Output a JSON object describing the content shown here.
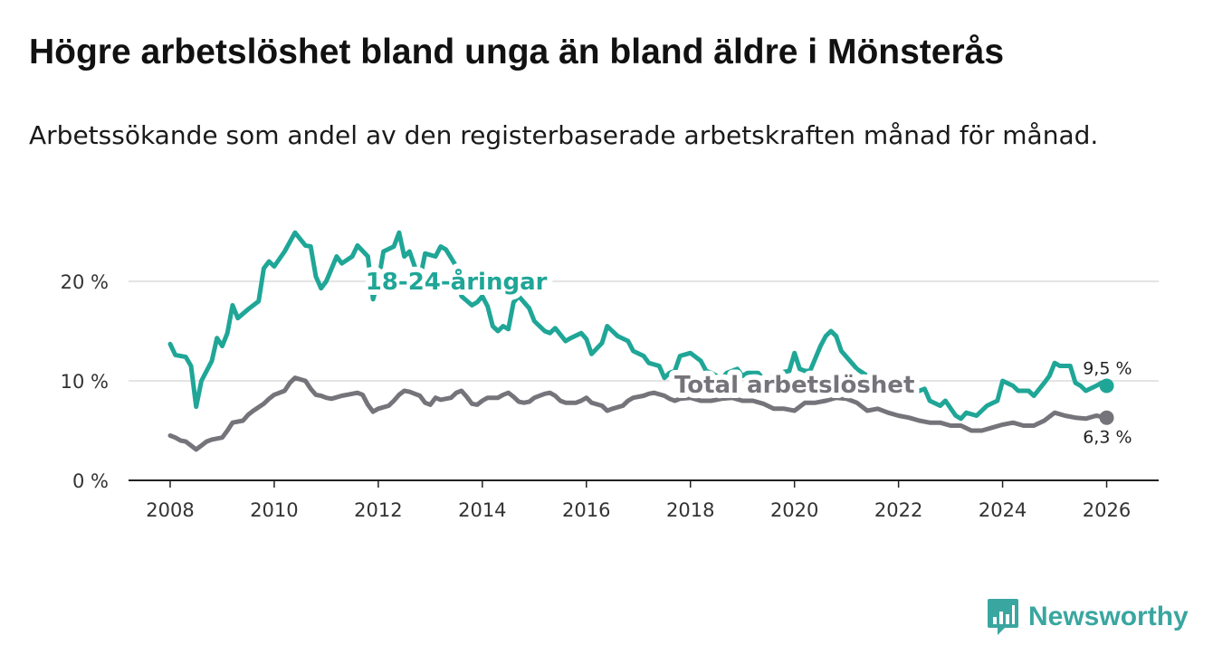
{
  "title": "Högre arbetslöshet bland unga än bland äldre i Mönsterås",
  "subtitle": "Arbetssökande som andel av den registerbaserade arbetskraften månad för månad.",
  "brand": "Newsworthy",
  "chart_data": {
    "type": "line",
    "xlim": [
      2007.2,
      2027.0
    ],
    "ylim": [
      0,
      21
    ],
    "x_ticks": [
      2008,
      2010,
      2012,
      2014,
      2016,
      2018,
      2020,
      2022,
      2024,
      2026
    ],
    "y_ticks": [
      {
        "value": 0,
        "label": "0 %"
      },
      {
        "value": 10,
        "label": "10 %"
      },
      {
        "value": 20,
        "label": "20 %"
      }
    ],
    "series": [
      {
        "name": "18-24-åringar",
        "label": "18-24-åringar",
        "label_at": [
          2013.5,
          19.2
        ],
        "color": "#1fa697",
        "end_label": "9,5 %",
        "points": [
          [
            2008.0,
            13.7
          ],
          [
            2008.1,
            12.6
          ],
          [
            2008.3,
            12.4
          ],
          [
            2008.4,
            11.5
          ],
          [
            2008.5,
            7.4
          ],
          [
            2008.6,
            10.0
          ],
          [
            2008.8,
            12.0
          ],
          [
            2008.9,
            14.3
          ],
          [
            2009.0,
            13.5
          ],
          [
            2009.1,
            14.8
          ],
          [
            2009.2,
            17.6
          ],
          [
            2009.3,
            16.3
          ],
          [
            2009.5,
            17.2
          ],
          [
            2009.7,
            18.0
          ],
          [
            2009.8,
            21.3
          ],
          [
            2009.9,
            22.0
          ],
          [
            2010.0,
            21.5
          ],
          [
            2010.2,
            23.0
          ],
          [
            2010.4,
            24.9
          ],
          [
            2010.6,
            23.6
          ],
          [
            2010.7,
            23.5
          ],
          [
            2010.8,
            20.5
          ],
          [
            2010.9,
            19.3
          ],
          [
            2011.0,
            20.0
          ],
          [
            2011.2,
            22.5
          ],
          [
            2011.3,
            21.8
          ],
          [
            2011.5,
            22.5
          ],
          [
            2011.6,
            23.6
          ],
          [
            2011.8,
            22.5
          ],
          [
            2011.9,
            18.2
          ],
          [
            2012.0,
            20.0
          ],
          [
            2012.1,
            23.0
          ],
          [
            2012.3,
            23.5
          ],
          [
            2012.4,
            24.9
          ],
          [
            2012.5,
            22.5
          ],
          [
            2012.6,
            23.0
          ],
          [
            2012.7,
            21.5
          ],
          [
            2012.8,
            20.2
          ],
          [
            2012.9,
            22.8
          ],
          [
            2013.1,
            22.5
          ],
          [
            2013.2,
            23.5
          ],
          [
            2013.3,
            23.2
          ],
          [
            2013.5,
            21.5
          ],
          [
            2013.6,
            18.5
          ],
          [
            2013.8,
            17.6
          ],
          [
            2013.9,
            17.9
          ],
          [
            2014.0,
            18.5
          ],
          [
            2014.1,
            17.5
          ],
          [
            2014.2,
            15.5
          ],
          [
            2014.3,
            15.0
          ],
          [
            2014.4,
            15.5
          ],
          [
            2014.5,
            15.2
          ],
          [
            2014.6,
            17.9
          ],
          [
            2014.7,
            18.5
          ],
          [
            2014.9,
            17.3
          ],
          [
            2015.0,
            16.0
          ],
          [
            2015.2,
            15.0
          ],
          [
            2015.3,
            14.8
          ],
          [
            2015.4,
            15.3
          ],
          [
            2015.6,
            14.0
          ],
          [
            2015.7,
            14.3
          ],
          [
            2015.9,
            14.8
          ],
          [
            2016.0,
            14.2
          ],
          [
            2016.1,
            12.7
          ],
          [
            2016.3,
            13.8
          ],
          [
            2016.4,
            15.5
          ],
          [
            2016.5,
            15.0
          ],
          [
            2016.6,
            14.5
          ],
          [
            2016.8,
            14.0
          ],
          [
            2016.9,
            13.0
          ],
          [
            2017.1,
            12.5
          ],
          [
            2017.2,
            11.8
          ],
          [
            2017.4,
            11.5
          ],
          [
            2017.5,
            10.3
          ],
          [
            2017.6,
            10.8
          ],
          [
            2017.7,
            11.0
          ],
          [
            2017.8,
            12.5
          ],
          [
            2018.0,
            12.8
          ],
          [
            2018.2,
            12.0
          ],
          [
            2018.3,
            11.0
          ],
          [
            2018.4,
            10.8
          ],
          [
            2018.6,
            10.2
          ],
          [
            2018.7,
            10.8
          ],
          [
            2018.9,
            11.2
          ],
          [
            2019.0,
            10.5
          ],
          [
            2019.1,
            10.8
          ],
          [
            2019.3,
            10.8
          ],
          [
            2019.4,
            10.2
          ],
          [
            2019.6,
            10.5
          ],
          [
            2019.7,
            10.8
          ],
          [
            2019.9,
            11.0
          ],
          [
            2020.0,
            12.8
          ],
          [
            2020.1,
            11.2
          ],
          [
            2020.2,
            11.0
          ],
          [
            2020.3,
            11.0
          ],
          [
            2020.5,
            13.5
          ],
          [
            2020.6,
            14.5
          ],
          [
            2020.7,
            15.0
          ],
          [
            2020.8,
            14.5
          ],
          [
            2020.9,
            13.0
          ],
          [
            2021.1,
            11.8
          ],
          [
            2021.2,
            11.2
          ],
          [
            2021.4,
            10.5
          ],
          [
            2021.5,
            10.2
          ],
          [
            2021.7,
            10.0
          ],
          [
            2021.9,
            9.5
          ],
          [
            2022.1,
            9.2
          ],
          [
            2022.3,
            8.8
          ],
          [
            2022.5,
            9.2
          ],
          [
            2022.6,
            8.0
          ],
          [
            2022.8,
            7.5
          ],
          [
            2022.9,
            8.0
          ],
          [
            2023.1,
            6.5
          ],
          [
            2023.2,
            6.2
          ],
          [
            2023.3,
            6.8
          ],
          [
            2023.5,
            6.5
          ],
          [
            2023.7,
            7.5
          ],
          [
            2023.9,
            8.0
          ],
          [
            2024.0,
            10.0
          ],
          [
            2024.2,
            9.5
          ],
          [
            2024.3,
            9.0
          ],
          [
            2024.5,
            9.0
          ],
          [
            2024.6,
            8.5
          ],
          [
            2024.8,
            9.8
          ],
          [
            2024.9,
            10.5
          ],
          [
            2025.0,
            11.8
          ],
          [
            2025.1,
            11.5
          ],
          [
            2025.3,
            11.5
          ],
          [
            2025.4,
            9.8
          ],
          [
            2025.5,
            9.5
          ],
          [
            2025.6,
            9.0
          ],
          [
            2025.8,
            9.5
          ],
          [
            2025.9,
            9.8
          ],
          [
            2026.0,
            9.5
          ]
        ]
      },
      {
        "name": "Total arbetslöshet",
        "label": "Total arbetslöshet",
        "label_at": [
          2020.0,
          8.8
        ],
        "color": "#75747a",
        "end_label": "6,3 %",
        "points": [
          [
            2008.0,
            4.5
          ],
          [
            2008.1,
            4.3
          ],
          [
            2008.2,
            4.0
          ],
          [
            2008.3,
            3.9
          ],
          [
            2008.4,
            3.5
          ],
          [
            2008.5,
            3.1
          ],
          [
            2008.6,
            3.5
          ],
          [
            2008.7,
            3.9
          ],
          [
            2008.8,
            4.1
          ],
          [
            2009.0,
            4.3
          ],
          [
            2009.1,
            5.0
          ],
          [
            2009.2,
            5.8
          ],
          [
            2009.4,
            6.0
          ],
          [
            2009.5,
            6.6
          ],
          [
            2009.6,
            7.0
          ],
          [
            2009.8,
            7.7
          ],
          [
            2009.9,
            8.2
          ],
          [
            2010.0,
            8.6
          ],
          [
            2010.2,
            9.0
          ],
          [
            2010.3,
            9.8
          ],
          [
            2010.4,
            10.3
          ],
          [
            2010.6,
            10.0
          ],
          [
            2010.7,
            9.2
          ],
          [
            2010.8,
            8.6
          ],
          [
            2010.9,
            8.5
          ],
          [
            2011.0,
            8.3
          ],
          [
            2011.1,
            8.2
          ],
          [
            2011.3,
            8.5
          ],
          [
            2011.4,
            8.6
          ],
          [
            2011.5,
            8.7
          ],
          [
            2011.6,
            8.8
          ],
          [
            2011.7,
            8.6
          ],
          [
            2011.8,
            7.6
          ],
          [
            2011.9,
            6.9
          ],
          [
            2012.0,
            7.2
          ],
          [
            2012.2,
            7.5
          ],
          [
            2012.3,
            8.0
          ],
          [
            2012.4,
            8.6
          ],
          [
            2012.5,
            9.0
          ],
          [
            2012.6,
            8.9
          ],
          [
            2012.8,
            8.5
          ],
          [
            2012.9,
            7.8
          ],
          [
            2013.0,
            7.6
          ],
          [
            2013.1,
            8.3
          ],
          [
            2013.2,
            8.1
          ],
          [
            2013.4,
            8.3
          ],
          [
            2013.5,
            8.8
          ],
          [
            2013.6,
            9.0
          ],
          [
            2013.7,
            8.4
          ],
          [
            2013.8,
            7.7
          ],
          [
            2013.9,
            7.6
          ],
          [
            2014.0,
            8.0
          ],
          [
            2014.1,
            8.3
          ],
          [
            2014.3,
            8.3
          ],
          [
            2014.4,
            8.6
          ],
          [
            2014.5,
            8.8
          ],
          [
            2014.6,
            8.4
          ],
          [
            2014.7,
            7.9
          ],
          [
            2014.8,
            7.8
          ],
          [
            2014.9,
            7.9
          ],
          [
            2015.0,
            8.3
          ],
          [
            2015.2,
            8.7
          ],
          [
            2015.3,
            8.8
          ],
          [
            2015.4,
            8.5
          ],
          [
            2015.5,
            8.0
          ],
          [
            2015.6,
            7.8
          ],
          [
            2015.8,
            7.8
          ],
          [
            2015.9,
            8.0
          ],
          [
            2016.0,
            8.3
          ],
          [
            2016.1,
            7.8
          ],
          [
            2016.3,
            7.5
          ],
          [
            2016.4,
            7.0
          ],
          [
            2016.5,
            7.2
          ],
          [
            2016.7,
            7.5
          ],
          [
            2016.8,
            8.0
          ],
          [
            2016.9,
            8.3
          ],
          [
            2017.1,
            8.5
          ],
          [
            2017.2,
            8.7
          ],
          [
            2017.3,
            8.8
          ],
          [
            2017.5,
            8.5
          ],
          [
            2017.6,
            8.2
          ],
          [
            2017.7,
            8.0
          ],
          [
            2017.8,
            8.2
          ],
          [
            2018.0,
            8.3
          ],
          [
            2018.2,
            8.0
          ],
          [
            2018.4,
            8.0
          ],
          [
            2018.6,
            8.2
          ],
          [
            2018.8,
            8.3
          ],
          [
            2019.0,
            8.0
          ],
          [
            2019.2,
            8.0
          ],
          [
            2019.4,
            7.7
          ],
          [
            2019.6,
            7.2
          ],
          [
            2019.8,
            7.2
          ],
          [
            2020.0,
            7.0
          ],
          [
            2020.2,
            7.8
          ],
          [
            2020.4,
            7.8
          ],
          [
            2020.6,
            8.0
          ],
          [
            2020.8,
            8.3
          ],
          [
            2021.0,
            8.2
          ],
          [
            2021.2,
            7.8
          ],
          [
            2021.4,
            7.0
          ],
          [
            2021.6,
            7.2
          ],
          [
            2021.8,
            6.8
          ],
          [
            2022.0,
            6.5
          ],
          [
            2022.2,
            6.3
          ],
          [
            2022.4,
            6.0
          ],
          [
            2022.6,
            5.8
          ],
          [
            2022.8,
            5.8
          ],
          [
            2023.0,
            5.5
          ],
          [
            2023.2,
            5.5
          ],
          [
            2023.4,
            5.0
          ],
          [
            2023.6,
            5.0
          ],
          [
            2023.8,
            5.3
          ],
          [
            2024.0,
            5.6
          ],
          [
            2024.2,
            5.8
          ],
          [
            2024.4,
            5.5
          ],
          [
            2024.6,
            5.5
          ],
          [
            2024.8,
            6.0
          ],
          [
            2025.0,
            6.8
          ],
          [
            2025.2,
            6.5
          ],
          [
            2025.4,
            6.3
          ],
          [
            2025.6,
            6.2
          ],
          [
            2025.8,
            6.5
          ],
          [
            2026.0,
            6.3
          ]
        ]
      }
    ]
  }
}
